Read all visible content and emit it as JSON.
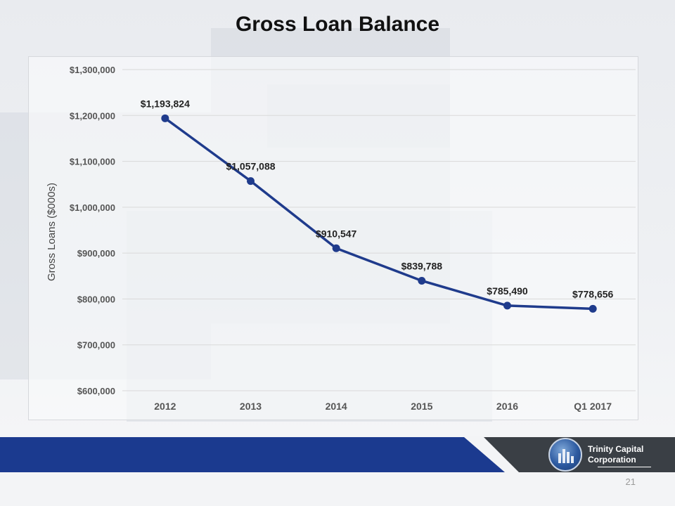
{
  "slide": {
    "title": "Gross Loan Balance",
    "page_number": "21"
  },
  "logo": {
    "line1": "Trinity Capital",
    "line2": "Corporation"
  },
  "colors": {
    "line": "#1f3b8c",
    "footer_blue": "#1b3a8f",
    "footer_dark": "#3a3f45",
    "grid": "#d9d9d9"
  },
  "chart_data": {
    "type": "line",
    "title": "",
    "xlabel": "",
    "ylabel": "Gross Loans ($000s)",
    "categories": [
      "2012",
      "2013",
      "2014",
      "2015",
      "2016",
      "Q1 2017"
    ],
    "values": [
      1193824,
      1057088,
      910547,
      839788,
      785490,
      778656
    ],
    "data_labels": [
      "$1,193,824",
      "$1,057,088",
      "$910,547",
      "$839,788",
      "$785,490",
      "$778,656"
    ],
    "ylim": [
      600000,
      1300000
    ],
    "yticks": [
      600000,
      700000,
      800000,
      900000,
      1000000,
      1100000,
      1200000,
      1300000
    ],
    "ytick_labels": [
      "$600,000",
      "$700,000",
      "$800,000",
      "$900,000",
      "$1,000,000",
      "$1,100,000",
      "$1,200,000",
      "$1,300,000"
    ],
    "grid": true,
    "legend": "none"
  }
}
